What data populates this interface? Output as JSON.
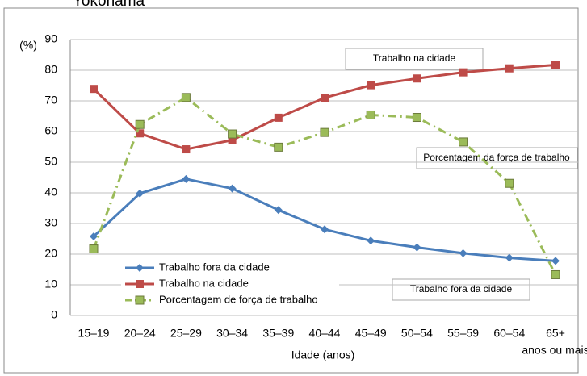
{
  "chart_data": {
    "type": "line",
    "title": "Yokohama",
    "y_label": "(%)",
    "x_label": "Idade (anos)",
    "categories": [
      "15–19",
      "20–24",
      "25–29",
      "30–34",
      "35–39",
      "40–44",
      "45–49",
      "50–54",
      "55–59",
      "60–54",
      "65+"
    ],
    "category_note": "anos ou mais",
    "series": [
      {
        "name": "Trabalho fora da cidade",
        "color": "#4a7ebb",
        "marker": "diamond",
        "values": [
          25.8,
          39.8,
          44.5,
          41.4,
          34.4,
          28.1,
          24.4,
          22.2,
          20.3,
          18.8,
          17.8
        ]
      },
      {
        "name": "Trabalho na cidade",
        "color": "#be4b48",
        "marker": "square",
        "values": [
          73.9,
          59.4,
          54.2,
          57.2,
          64.5,
          71.0,
          75.1,
          77.3,
          79.3,
          80.6,
          81.7
        ]
      },
      {
        "name": "Porcentagem de força de trabalho",
        "color": "#9bbb59",
        "marker": "square",
        "dash": true,
        "values": [
          21.7,
          62.3,
          71.1,
          59.2,
          54.9,
          59.7,
          65.4,
          64.6,
          56.6,
          43.1,
          13.3
        ]
      }
    ],
    "annotations": [
      "Trabalho na cidade",
      "Porcentagem da força de trabalho",
      "Trabalho fora da cidade"
    ],
    "ylim": [
      0,
      90
    ],
    "yticks": [
      0,
      10,
      20,
      30,
      40,
      50,
      60,
      70,
      80,
      90
    ],
    "grid": true,
    "legend": "lower left"
  }
}
